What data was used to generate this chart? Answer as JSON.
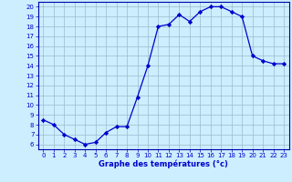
{
  "x": [
    0,
    1,
    2,
    3,
    4,
    5,
    6,
    7,
    8,
    9,
    10,
    11,
    12,
    13,
    14,
    15,
    16,
    17,
    18,
    19,
    20,
    21,
    22,
    23
  ],
  "y": [
    8.5,
    8.0,
    7.0,
    6.5,
    6.0,
    6.2,
    7.2,
    7.8,
    7.8,
    10.8,
    14.0,
    18.0,
    18.2,
    19.2,
    18.5,
    19.5,
    20.0,
    20.0,
    19.5,
    19.0,
    15.0,
    14.5,
    14.2,
    14.2
  ],
  "xlabel": "Graphe des températures (°c)",
  "xlim_min": -0.5,
  "xlim_max": 23.5,
  "ylim_min": 5.5,
  "ylim_max": 20.5,
  "yticks": [
    6,
    7,
    8,
    9,
    10,
    11,
    12,
    13,
    14,
    15,
    16,
    17,
    18,
    19,
    20
  ],
  "xticks": [
    0,
    1,
    2,
    3,
    4,
    5,
    6,
    7,
    8,
    9,
    10,
    11,
    12,
    13,
    14,
    15,
    16,
    17,
    18,
    19,
    20,
    21,
    22,
    23
  ],
  "line_color": "#0000cc",
  "marker_color": "#0000cc",
  "bg_color": "#cceeff",
  "grid_color": "#99bbcc",
  "axis_color": "#0000aa",
  "tick_color": "#0000cc",
  "label_color": "#0000cc",
  "tick_fontsize": 5.0,
  "xlabel_fontsize": 6.0,
  "linewidth": 0.9,
  "markersize": 2.2
}
